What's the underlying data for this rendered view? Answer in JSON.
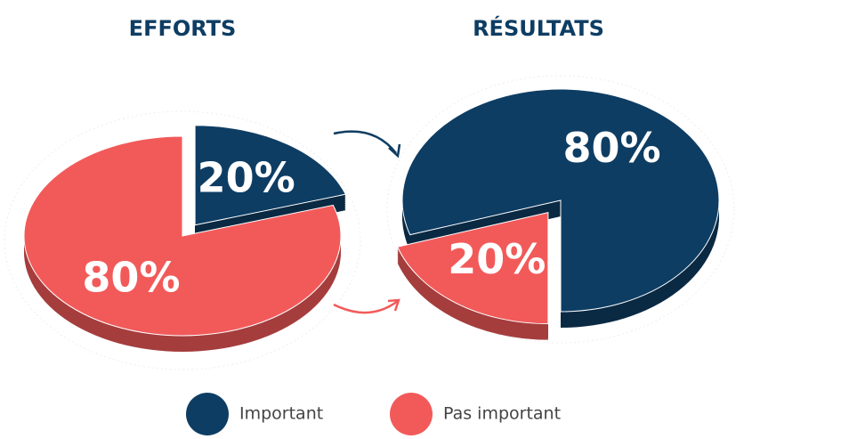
{
  "chart_data": {
    "type": "pie",
    "categories": [
      "Important",
      "Pas important"
    ],
    "colors": [
      "#0e3d63",
      "#f25a5a"
    ],
    "series": [
      {
        "name": "EFFORTS",
        "values": [
          20,
          80
        ],
        "value_labels": [
          "20%",
          "80%"
        ]
      },
      {
        "name": "RÉSULTATS",
        "values": [
          80,
          20
        ],
        "value_labels": [
          "80%",
          "20%"
        ]
      }
    ],
    "legend": "bottom"
  }
}
